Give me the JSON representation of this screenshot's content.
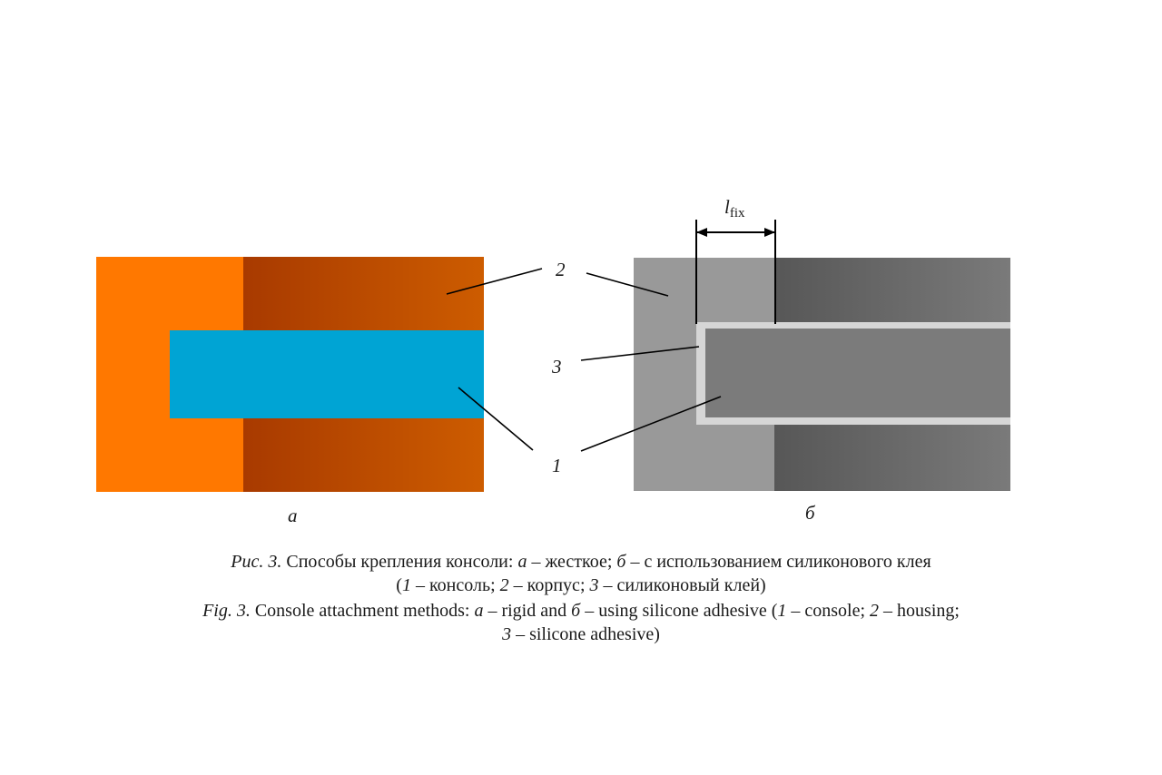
{
  "figure": {
    "panel_a_label": "а",
    "panel_b_label": "б",
    "callouts": {
      "one": "1",
      "two": "2",
      "three": "3"
    },
    "dimension": {
      "symbol": "l",
      "subscript": "fix"
    }
  },
  "caption_ru": {
    "fig_ref": "Рис. 3.",
    "text_1": " Способы крепления консоли: ",
    "a": "а",
    "text_2": " – жесткое; ",
    "b": "б",
    "text_3": " – с использованием силиконового клея",
    "paren_open": "(",
    "n1": "1",
    "text_4": " – консоль; ",
    "n2": "2",
    "text_5": " – корпус; ",
    "n3": "3",
    "text_6": " – силиконовый клей)"
  },
  "caption_en": {
    "fig_ref": "Fig. 3.",
    "text_1": " Console attachment methods: ",
    "a": "a",
    "text_2": " – rigid and ",
    "b": "б",
    "text_3": " – using silicone adhesive (",
    "n1": "1",
    "text_4": " – console; ",
    "n2": "2",
    "text_5": " – housing;",
    "n3": "3",
    "text_6": " – silicone adhesive)"
  },
  "colors": {
    "housing_a_base": "#ff7800",
    "housing_a_gradient_start": "#a83a00",
    "housing_a_gradient_end": "#cd5c00",
    "console_a": "#00a4d4",
    "housing_b_base": "#999999",
    "housing_b_gradient_start": "#575757",
    "housing_b_gradient_end": "#7a7a7a",
    "console_b": "#7b7b7b",
    "adhesive_b": "#d6d6d6"
  }
}
